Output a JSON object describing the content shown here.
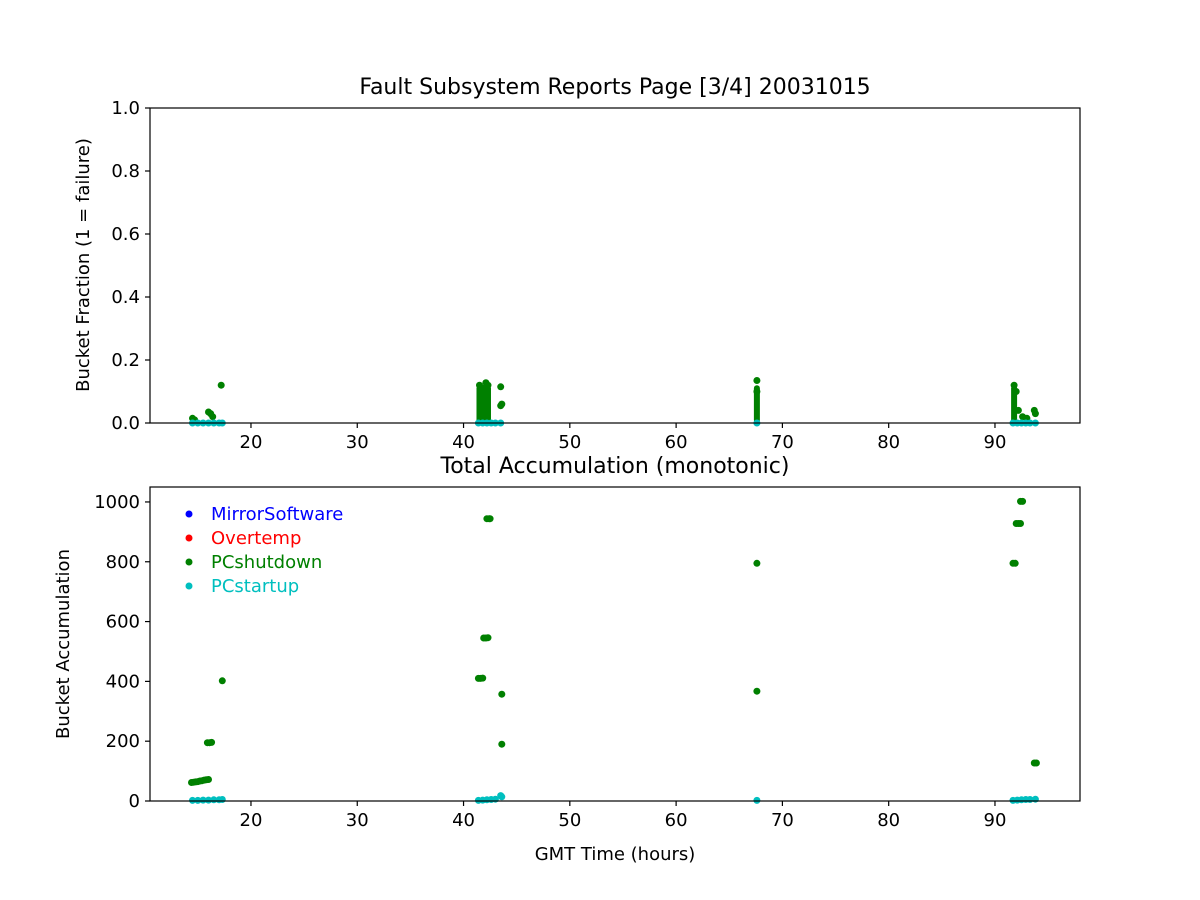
{
  "chart_data": [
    {
      "type": "scatter",
      "title": "Fault Subsystem Reports Page [3/4] 20031015",
      "xlabel": "",
      "ylabel": "Bucket Fraction (1 = failure)",
      "xlim": [
        10.5,
        98
      ],
      "ylim": [
        0,
        1.0
      ],
      "xticks": [
        20,
        30,
        40,
        50,
        60,
        70,
        80,
        90
      ],
      "yticks": [
        0.0,
        0.2,
        0.4,
        0.6,
        0.8,
        1.0
      ],
      "ytick_format": 1,
      "grid": false,
      "legend": null,
      "bars": [
        {
          "series": "PCshutdown",
          "x": 41.5,
          "y0": 0,
          "y1": 0.12
        },
        {
          "series": "PCshutdown",
          "x": 41.7,
          "y0": 0,
          "y1": 0.11
        },
        {
          "series": "PCshutdown",
          "x": 41.9,
          "y0": 0,
          "y1": 0.1
        },
        {
          "series": "PCshutdown",
          "x": 42.1,
          "y0": 0,
          "y1": 0.125
        },
        {
          "series": "PCshutdown",
          "x": 42.3,
          "y0": 0,
          "y1": 0.12
        },
        {
          "series": "PCshutdown",
          "x": 67.6,
          "y0": 0,
          "y1": 0.12
        },
        {
          "series": "PCshutdown",
          "x": 91.8,
          "y0": 0,
          "y1": 0.12
        }
      ],
      "series": [
        {
          "name": "PCshutdown",
          "color": "#008000",
          "points": [
            [
              14.5,
              0.015
            ],
            [
              14.7,
              0.01
            ],
            [
              16.0,
              0.035
            ],
            [
              16.2,
              0.03
            ],
            [
              16.4,
              0.02
            ],
            [
              17.2,
              0.12
            ],
            [
              41.5,
              0.12
            ],
            [
              41.8,
              0.11
            ],
            [
              42.1,
              0.128
            ],
            [
              42.3,
              0.12
            ],
            [
              43.5,
              0.115
            ],
            [
              43.6,
              0.06
            ],
            [
              43.5,
              0.055
            ],
            [
              67.6,
              0.135
            ],
            [
              67.6,
              0.1
            ],
            [
              91.8,
              0.12
            ],
            [
              92.0,
              0.1
            ],
            [
              92.2,
              0.04
            ],
            [
              92.6,
              0.02
            ],
            [
              93.0,
              0.015
            ],
            [
              93.7,
              0.04
            ],
            [
              93.8,
              0.03
            ]
          ]
        },
        {
          "name": "PCstartup",
          "color": "#00bfbf",
          "points": [
            [
              14.5,
              0.0
            ],
            [
              15.0,
              0.0
            ],
            [
              15.5,
              0.0
            ],
            [
              16.0,
              0.0
            ],
            [
              16.5,
              0.0
            ],
            [
              17.0,
              0.0
            ],
            [
              17.3,
              0.0
            ],
            [
              41.4,
              0.0
            ],
            [
              41.8,
              0.0
            ],
            [
              42.2,
              0.0
            ],
            [
              42.6,
              0.0
            ],
            [
              43.0,
              0.0
            ],
            [
              43.5,
              0.0
            ],
            [
              67.6,
              0.0
            ],
            [
              91.7,
              0.0
            ],
            [
              92.1,
              0.0
            ],
            [
              92.5,
              0.0
            ],
            [
              92.9,
              0.0
            ],
            [
              93.3,
              0.0
            ],
            [
              93.8,
              0.0
            ]
          ]
        }
      ]
    },
    {
      "type": "scatter",
      "title": "Total Accumulation (monotonic)",
      "xlabel": "GMT Time (hours)",
      "ylabel": "Bucket Accumulation",
      "xlim": [
        10.5,
        98
      ],
      "ylim": [
        0,
        1050
      ],
      "xticks": [
        20,
        30,
        40,
        50,
        60,
        70,
        80,
        90
      ],
      "yticks": [
        0,
        200,
        400,
        600,
        800,
        1000
      ],
      "ytick_format": 0,
      "grid": false,
      "legend": "top-left",
      "series": [
        {
          "name": "MirrorSoftware",
          "color": "#0000ff",
          "points": []
        },
        {
          "name": "Overtemp",
          "color": "#ff0000",
          "points": []
        },
        {
          "name": "PCshutdown",
          "color": "#008000",
          "points": [
            [
              14.4,
              62
            ],
            [
              14.6,
              63
            ],
            [
              14.8,
              64
            ],
            [
              15.0,
              65
            ],
            [
              15.2,
              67
            ],
            [
              15.4,
              68
            ],
            [
              15.6,
              70
            ],
            [
              15.8,
              71
            ],
            [
              16.0,
              72
            ],
            [
              15.9,
              195
            ],
            [
              16.1,
              195
            ],
            [
              16.3,
              196
            ],
            [
              17.3,
              402
            ],
            [
              41.4,
              410
            ],
            [
              41.6,
              410
            ],
            [
              41.8,
              411
            ],
            [
              41.9,
              545
            ],
            [
              42.1,
              545
            ],
            [
              42.3,
              546
            ],
            [
              42.2,
              944
            ],
            [
              42.4,
              944
            ],
            [
              42.5,
              944
            ],
            [
              43.6,
              357
            ],
            [
              43.6,
              190
            ],
            [
              67.6,
              795
            ],
            [
              67.6,
              367
            ],
            [
              91.7,
              795
            ],
            [
              91.9,
              795
            ],
            [
              92.0,
              928
            ],
            [
              92.2,
              928
            ],
            [
              92.4,
              928
            ],
            [
              92.4,
              1002
            ],
            [
              92.6,
              1002
            ],
            [
              93.7,
              127
            ],
            [
              93.9,
              127
            ]
          ]
        },
        {
          "name": "PCstartup",
          "color": "#00bfbf",
          "points": [
            [
              14.5,
              2
            ],
            [
              15.0,
              2
            ],
            [
              15.5,
              3
            ],
            [
              16.0,
              3
            ],
            [
              16.5,
              4
            ],
            [
              17.0,
              4
            ],
            [
              17.3,
              5
            ],
            [
              41.4,
              2
            ],
            [
              41.8,
              3
            ],
            [
              42.2,
              4
            ],
            [
              42.6,
              5
            ],
            [
              43.0,
              6
            ],
            [
              43.5,
              18
            ],
            [
              43.6,
              14
            ],
            [
              67.6,
              2
            ],
            [
              91.7,
              2
            ],
            [
              92.1,
              3
            ],
            [
              92.5,
              4
            ],
            [
              92.9,
              5
            ],
            [
              93.3,
              5
            ],
            [
              93.8,
              6
            ]
          ]
        }
      ]
    }
  ]
}
